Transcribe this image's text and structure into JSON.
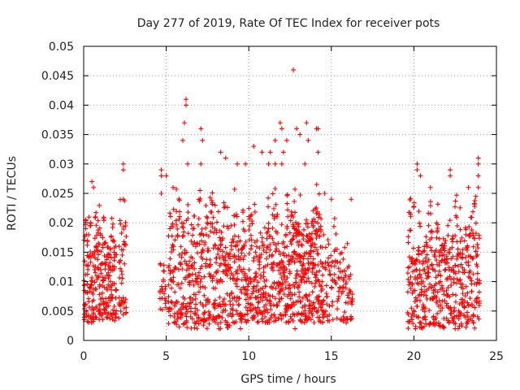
{
  "chart_data": {
    "type": "scatter",
    "title": "Day 277 of 2019, Rate Of TEC Index for receiver pots",
    "xlabel": "GPS time / hours",
    "ylabel": "ROTI / TECUs",
    "xlim": [
      0,
      25
    ],
    "ylim": [
      0,
      0.05
    ],
    "x_ticks": [
      0,
      5,
      10,
      15,
      20,
      25
    ],
    "x_tick_labels": [
      "0",
      "5",
      "10",
      "15",
      "20",
      "25"
    ],
    "y_ticks": [
      0,
      0.005,
      0.01,
      0.015,
      0.02,
      0.025,
      0.03,
      0.035,
      0.04,
      0.045,
      0.05
    ],
    "y_tick_labels": [
      "0",
      "0.005",
      "0.01",
      "0.015",
      "0.02",
      "0.025",
      "0.03",
      "0.035",
      "0.04",
      "0.045",
      "0.05"
    ],
    "grid": true,
    "marker": "+",
    "marker_color": "#ff0000",
    "series": [
      {
        "name": "ROTI",
        "clusters": [
          {
            "x_range": [
              0.0,
              2.0
            ],
            "y_range": [
              0.003,
              0.024
            ],
            "count": 260
          },
          {
            "x_range": [
              2.1,
              2.6
            ],
            "y_range": [
              0.003,
              0.025
            ],
            "count": 45
          },
          {
            "x_range": [
              4.6,
              5.0
            ],
            "y_range": [
              0.005,
              0.014
            ],
            "count": 25
          },
          {
            "x_range": [
              5.1,
              9.0
            ],
            "y_range": [
              0.002,
              0.028
            ],
            "count": 420
          },
          {
            "x_range": [
              9.0,
              12.2
            ],
            "y_range": [
              0.003,
              0.027
            ],
            "count": 360
          },
          {
            "x_range": [
              12.2,
              14.5
            ],
            "y_range": [
              0.003,
              0.028
            ],
            "count": 330
          },
          {
            "x_range": [
              14.5,
              16.3
            ],
            "y_range": [
              0.003,
              0.022
            ],
            "count": 120
          },
          {
            "x_range": [
              19.6,
              24.0
            ],
            "y_range": [
              0.002,
              0.025
            ],
            "count": 480
          }
        ],
        "points": [
          [
            12.7,
            0.046
          ],
          [
            6.2,
            0.041
          ],
          [
            6.2,
            0.04
          ],
          [
            6.1,
            0.037
          ],
          [
            7.1,
            0.036
          ],
          [
            6.0,
            0.034
          ],
          [
            7.2,
            0.034
          ],
          [
            11.9,
            0.037
          ],
          [
            12.0,
            0.036
          ],
          [
            12.9,
            0.036
          ],
          [
            13.5,
            0.037
          ],
          [
            14.1,
            0.036
          ],
          [
            14.2,
            0.036
          ],
          [
            13.1,
            0.035
          ],
          [
            11.6,
            0.034
          ],
          [
            12.3,
            0.034
          ],
          [
            13.6,
            0.034
          ],
          [
            10.3,
            0.033
          ],
          [
            10.8,
            0.032
          ],
          [
            11.3,
            0.032
          ],
          [
            12.1,
            0.032
          ],
          [
            14.2,
            0.032
          ],
          [
            8.3,
            0.032
          ],
          [
            8.6,
            0.031
          ],
          [
            9.3,
            0.03
          ],
          [
            2.4,
            0.03
          ],
          [
            2.4,
            0.029
          ],
          [
            4.7,
            0.029
          ],
          [
            4.7,
            0.028
          ],
          [
            7.1,
            0.03
          ],
          [
            5.0,
            0.028
          ],
          [
            6.3,
            0.03
          ],
          [
            9.8,
            0.03
          ],
          [
            11.2,
            0.03
          ],
          [
            11.6,
            0.03
          ],
          [
            12.0,
            0.03
          ],
          [
            13.4,
            0.03
          ],
          [
            20.2,
            0.03
          ],
          [
            20.2,
            0.029
          ],
          [
            23.9,
            0.031
          ],
          [
            23.9,
            0.03
          ],
          [
            23.9,
            0.028
          ],
          [
            23.9,
            0.026
          ],
          [
            22.2,
            0.029
          ],
          [
            22.2,
            0.028
          ],
          [
            20.4,
            0.028
          ],
          [
            0.5,
            0.027
          ],
          [
            0.6,
            0.026
          ],
          [
            4.7,
            0.025
          ],
          [
            2.4,
            0.024
          ],
          [
            16.2,
            0.024
          ],
          [
            15.0,
            0.024
          ],
          [
            14.6,
            0.025
          ],
          [
            21.0,
            0.026
          ],
          [
            23.3,
            0.026
          ],
          [
            0.1,
            0.006
          ],
          [
            0.3,
            0.004
          ],
          [
            6.7,
            0.003
          ],
          [
            8.2,
            0.002
          ],
          [
            14.5,
            0.004
          ],
          [
            15.9,
            0.003
          ],
          [
            20.1,
            0.002
          ],
          [
            20.4,
            0.003
          ],
          [
            21.5,
            0.003
          ],
          [
            22.5,
            0.002
          ],
          [
            23.6,
            0.003
          ],
          [
            9.5,
            0.002
          ],
          [
            12.8,
            0.002
          ]
        ]
      }
    ]
  }
}
